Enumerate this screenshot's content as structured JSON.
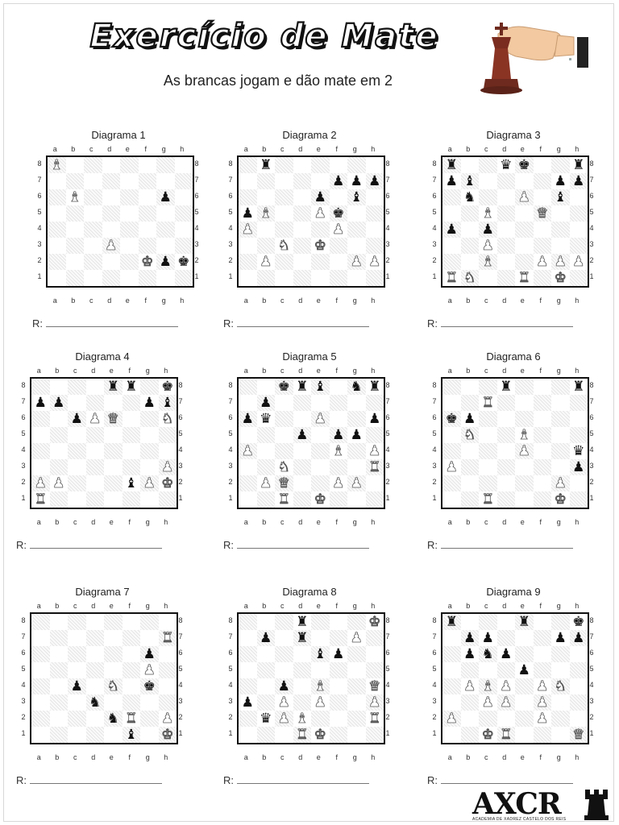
{
  "header": {
    "title": "Exercício de Mate",
    "subtitle": "As brancas jogam e dão mate em 2"
  },
  "labels": {
    "files": [
      "a",
      "b",
      "c",
      "d",
      "e",
      "f",
      "g",
      "h"
    ],
    "ranks": [
      "8",
      "7",
      "6",
      "5",
      "4",
      "3",
      "2",
      "1"
    ],
    "answer_prefix": "R:"
  },
  "diagrams": [
    {
      "title": "Diagrama 1",
      "pieces": [
        [
          "a8",
          "wB"
        ],
        [
          "b6",
          "wB"
        ],
        [
          "g6",
          "bP"
        ],
        [
          "d3",
          "wP"
        ],
        [
          "f2",
          "wK"
        ],
        [
          "g2",
          "bP"
        ],
        [
          "h2",
          "bK"
        ]
      ]
    },
    {
      "title": "Diagrama 2",
      "pieces": [
        [
          "b8",
          "bR"
        ],
        [
          "f7",
          "bP"
        ],
        [
          "g7",
          "bP"
        ],
        [
          "h7",
          "bP"
        ],
        [
          "e6",
          "bP"
        ],
        [
          "g6",
          "bB"
        ],
        [
          "a5",
          "bP"
        ],
        [
          "b5",
          "wB"
        ],
        [
          "e5",
          "wP"
        ],
        [
          "f5",
          "bK"
        ],
        [
          "a4",
          "wP"
        ],
        [
          "f4",
          "wP"
        ],
        [
          "c3",
          "wN"
        ],
        [
          "e3",
          "wK"
        ],
        [
          "b2",
          "wP"
        ],
        [
          "g2",
          "wP"
        ],
        [
          "h2",
          "wP"
        ]
      ]
    },
    {
      "title": "Diagrama 3",
      "pieces": [
        [
          "a8",
          "bR"
        ],
        [
          "d8",
          "bQ"
        ],
        [
          "e8",
          "bK"
        ],
        [
          "h8",
          "bR"
        ],
        [
          "a7",
          "bP"
        ],
        [
          "b7",
          "bB"
        ],
        [
          "g7",
          "bP"
        ],
        [
          "h7",
          "bP"
        ],
        [
          "b6",
          "bN"
        ],
        [
          "e6",
          "wP"
        ],
        [
          "g6",
          "bB"
        ],
        [
          "c5",
          "wB"
        ],
        [
          "f5",
          "wQ"
        ],
        [
          "a4",
          "bP"
        ],
        [
          "c4",
          "bP"
        ],
        [
          "c3",
          "wP"
        ],
        [
          "c2",
          "wB"
        ],
        [
          "f2",
          "wP"
        ],
        [
          "g2",
          "wP"
        ],
        [
          "h2",
          "wP"
        ],
        [
          "a1",
          "wR"
        ],
        [
          "b1",
          "wN"
        ],
        [
          "e1",
          "wR"
        ],
        [
          "g1",
          "wK"
        ]
      ]
    },
    {
      "title": "Diagrama 4",
      "pieces": [
        [
          "e8",
          "bR"
        ],
        [
          "f8",
          "bR"
        ],
        [
          "h8",
          "bK"
        ],
        [
          "a7",
          "bP"
        ],
        [
          "b7",
          "bP"
        ],
        [
          "g7",
          "bP"
        ],
        [
          "h7",
          "bB"
        ],
        [
          "c6",
          "bP"
        ],
        [
          "d6",
          "wP"
        ],
        [
          "e6",
          "wQ"
        ],
        [
          "h6",
          "wN"
        ],
        [
          "h3",
          "wP"
        ],
        [
          "a2",
          "wP"
        ],
        [
          "b2",
          "wP"
        ],
        [
          "f2",
          "bB"
        ],
        [
          "g2",
          "wP"
        ],
        [
          "h2",
          "wK"
        ],
        [
          "a1",
          "wR"
        ]
      ]
    },
    {
      "title": "Diagrama 5",
      "pieces": [
        [
          "c8",
          "bK"
        ],
        [
          "d8",
          "bR"
        ],
        [
          "e8",
          "bB"
        ],
        [
          "g8",
          "bN"
        ],
        [
          "h8",
          "bR"
        ],
        [
          "b7",
          "bP"
        ],
        [
          "a6",
          "bP"
        ],
        [
          "b6",
          "bQ"
        ],
        [
          "e6",
          "wP"
        ],
        [
          "h6",
          "bP"
        ],
        [
          "d5",
          "bP"
        ],
        [
          "f5",
          "bP"
        ],
        [
          "g5",
          "bP"
        ],
        [
          "a4",
          "wP"
        ],
        [
          "f4",
          "wB"
        ],
        [
          "h4",
          "wP"
        ],
        [
          "c3",
          "wN"
        ],
        [
          "h3",
          "wR"
        ],
        [
          "b2",
          "wP"
        ],
        [
          "c2",
          "wQ"
        ],
        [
          "f2",
          "wP"
        ],
        [
          "g2",
          "wP"
        ],
        [
          "c1",
          "wR"
        ],
        [
          "e1",
          "wK"
        ]
      ]
    },
    {
      "title": "Diagrama 6",
      "pieces": [
        [
          "d8",
          "bR"
        ],
        [
          "h8",
          "bR"
        ],
        [
          "c7",
          "wR"
        ],
        [
          "a6",
          "bK"
        ],
        [
          "b6",
          "bP"
        ],
        [
          "b5",
          "wN"
        ],
        [
          "e5",
          "wB"
        ],
        [
          "e4",
          "wP"
        ],
        [
          "h4",
          "bQ"
        ],
        [
          "a3",
          "wP"
        ],
        [
          "h3",
          "bP"
        ],
        [
          "g2",
          "wP"
        ],
        [
          "c1",
          "wR"
        ],
        [
          "g1",
          "wK"
        ]
      ]
    },
    {
      "title": "Diagrama 7",
      "pieces": [
        [
          "h7",
          "wR"
        ],
        [
          "g6",
          "bP"
        ],
        [
          "g5",
          "wP"
        ],
        [
          "c4",
          "bP"
        ],
        [
          "e4",
          "wN"
        ],
        [
          "g4",
          "bK"
        ],
        [
          "d3",
          "bN"
        ],
        [
          "e2",
          "bN"
        ],
        [
          "f2",
          "wR"
        ],
        [
          "h2",
          "wP"
        ],
        [
          "f1",
          "bB"
        ],
        [
          "h1",
          "wK"
        ]
      ]
    },
    {
      "title": "Diagrama 8",
      "pieces": [
        [
          "d8",
          "bR"
        ],
        [
          "h8",
          "wK"
        ],
        [
          "b7",
          "bP"
        ],
        [
          "d7",
          "bR"
        ],
        [
          "g7",
          "wP"
        ],
        [
          "e6",
          "bB"
        ],
        [
          "f6",
          "bP"
        ],
        [
          "c4",
          "bP"
        ],
        [
          "e4",
          "wB"
        ],
        [
          "h4",
          "wQ"
        ],
        [
          "a3",
          "bP"
        ],
        [
          "c3",
          "wP"
        ],
        [
          "e3",
          "wP"
        ],
        [
          "h3",
          "wP"
        ],
        [
          "b2",
          "bQ"
        ],
        [
          "c2",
          "wP"
        ],
        [
          "d2",
          "wB"
        ],
        [
          "h2",
          "wR"
        ],
        [
          "d1",
          "wR"
        ],
        [
          "e1",
          "wK"
        ]
      ]
    },
    {
      "title": "Diagrama 9",
      "pieces": [
        [
          "a8",
          "bR"
        ],
        [
          "e8",
          "bR"
        ],
        [
          "h8",
          "bK"
        ],
        [
          "b7",
          "bP"
        ],
        [
          "c7",
          "bP"
        ],
        [
          "g7",
          "bP"
        ],
        [
          "h7",
          "bP"
        ],
        [
          "b6",
          "bP"
        ],
        [
          "c6",
          "bN"
        ],
        [
          "d6",
          "bP"
        ],
        [
          "e5",
          "bP"
        ],
        [
          "b4",
          "wP"
        ],
        [
          "c4",
          "wB"
        ],
        [
          "d4",
          "wP"
        ],
        [
          "f4",
          "wP"
        ],
        [
          "g4",
          "wN"
        ],
        [
          "c3",
          "wP"
        ],
        [
          "d3",
          "wP"
        ],
        [
          "f3",
          "wP"
        ],
        [
          "a2",
          "wP"
        ],
        [
          "f2",
          "wP"
        ],
        [
          "c1",
          "wK"
        ],
        [
          "d1",
          "wR"
        ],
        [
          "h1",
          "wQ"
        ]
      ]
    }
  ],
  "logo": {
    "text": "AXCR",
    "subtitle": "ACADEMIA DE XADREZ CASTELO DOS REIS"
  }
}
